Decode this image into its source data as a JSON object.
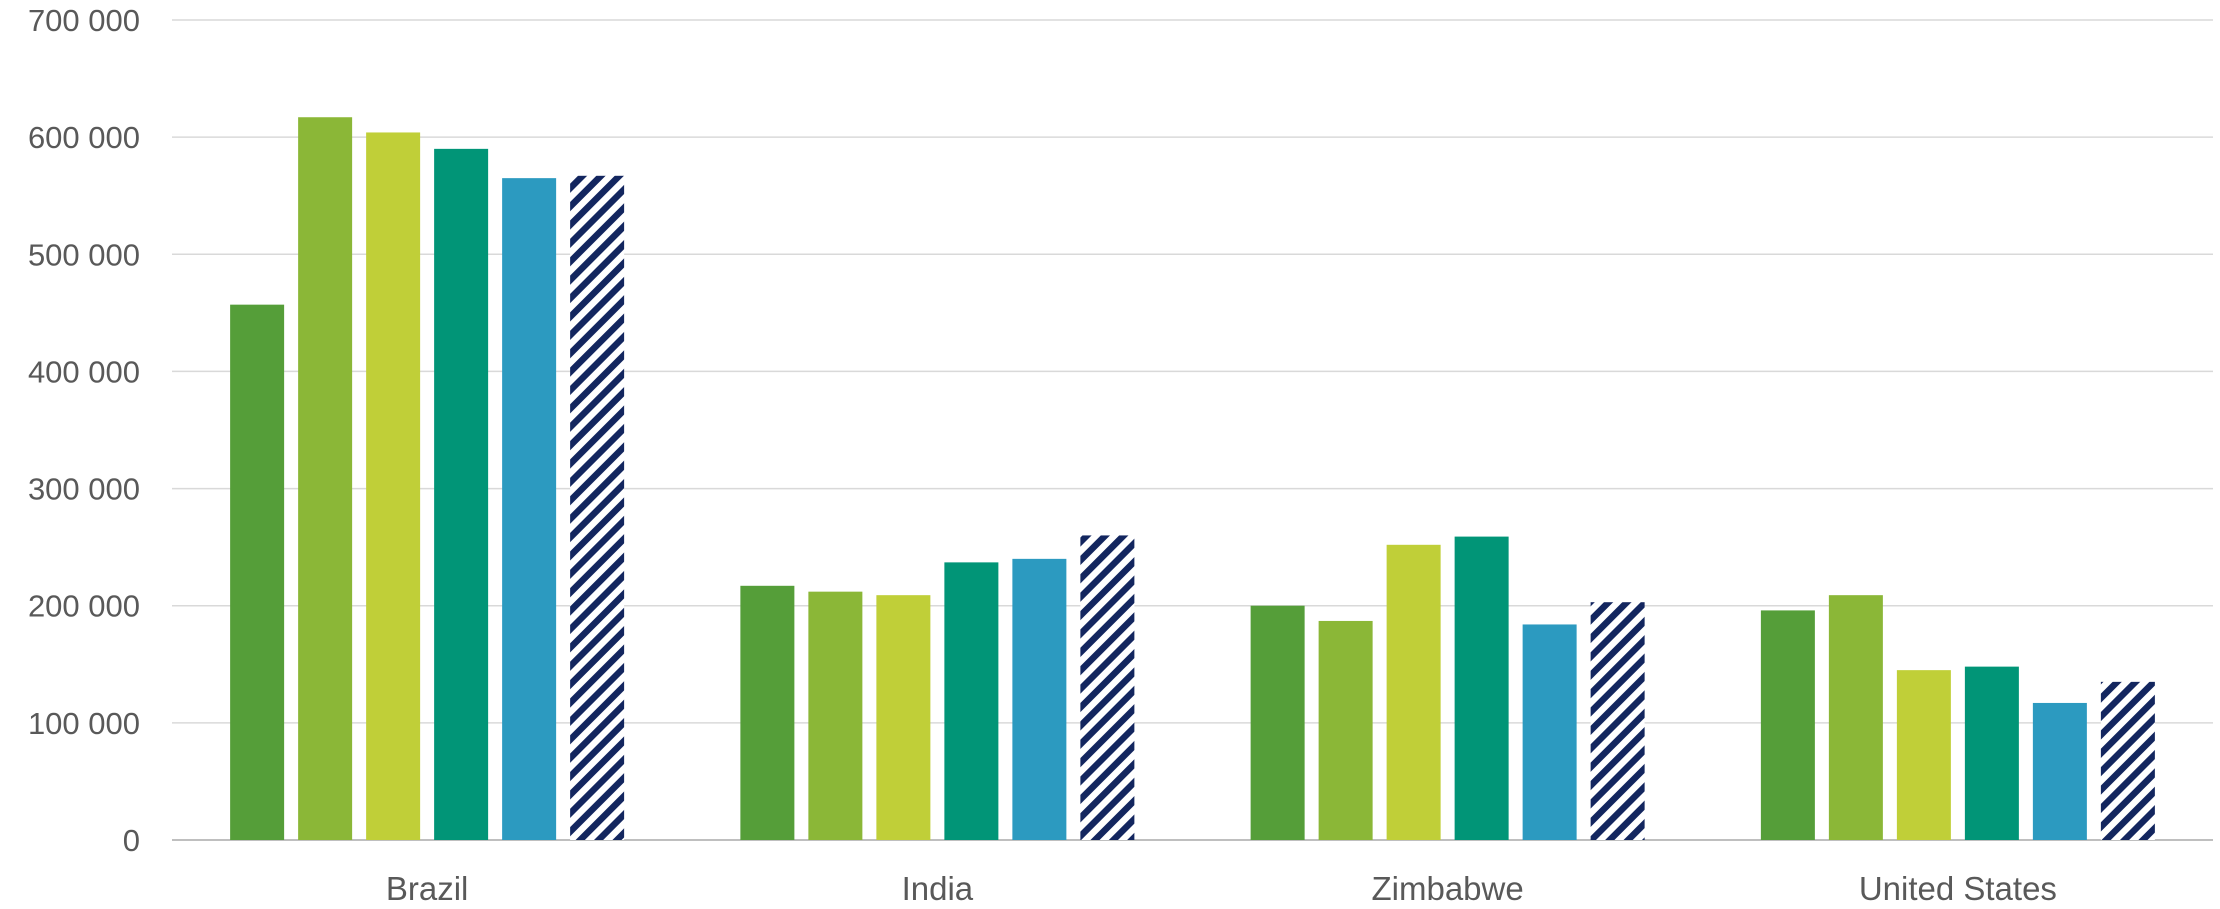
{
  "chart_data": {
    "type": "bar",
    "categories": [
      "Brazil",
      "India",
      "Zimbabwe",
      "United States"
    ],
    "series": [
      {
        "values": [
          457000,
          217000,
          200000,
          196000
        ],
        "color": "#559e39",
        "pattern": "solid"
      },
      {
        "values": [
          617000,
          212000,
          187000,
          209000
        ],
        "color": "#8bb737",
        "pattern": "solid"
      },
      {
        "values": [
          604000,
          209000,
          252000,
          145000
        ],
        "color": "#c0cf38",
        "pattern": "solid"
      },
      {
        "values": [
          590000,
          237000,
          259000,
          148000
        ],
        "color": "#019577",
        "pattern": "solid"
      },
      {
        "values": [
          565000,
          240000,
          184000,
          117000
        ],
        "color": "#2c9ac0",
        "pattern": "solid"
      },
      {
        "values": [
          567000,
          260000,
          203000,
          135000
        ],
        "color": "#13265f",
        "pattern": "hatched"
      }
    ],
    "y_ticks": [
      "0",
      "100 000",
      "200 000",
      "300 000",
      "400 000",
      "500 000",
      "600 000",
      "700 000"
    ],
    "ylim": [
      0,
      700000
    ],
    "grid": true,
    "legend": "none",
    "title": "",
    "xlabel": "",
    "ylabel": ""
  }
}
